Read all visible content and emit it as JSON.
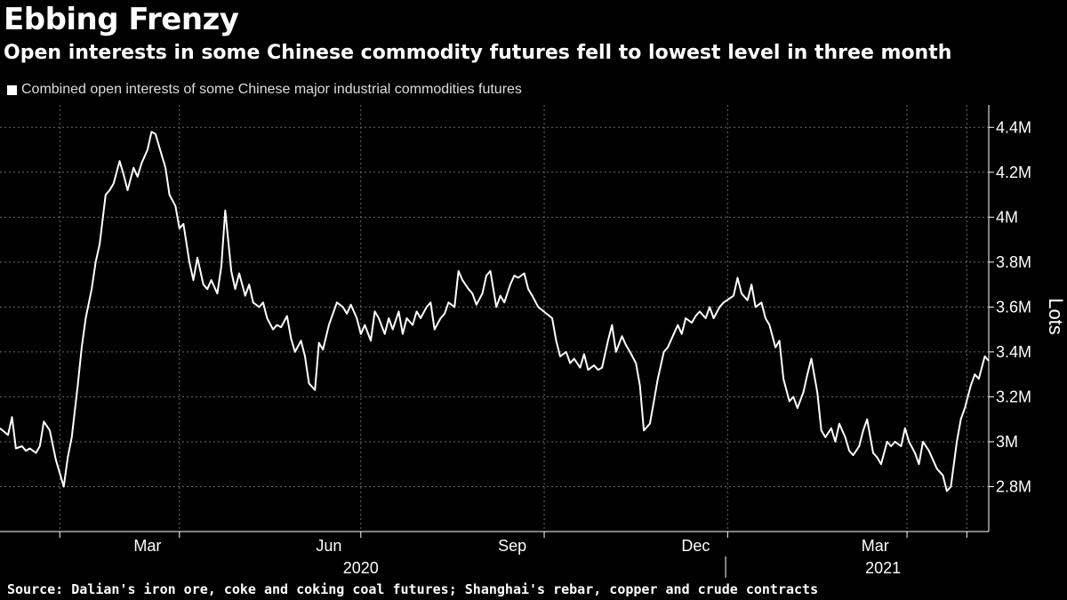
{
  "header": {
    "title": "Ebbing Frenzy",
    "subtitle": "Open interests in some Chinese commodity futures fell to lowest level in three month"
  },
  "footer": {
    "source": "Source: Dalian's iron ore, coke and coking coal futures; Shanghai's rebar, copper and crude contracts"
  },
  "colors": {
    "background": "#000000",
    "line": "#ffffff",
    "grid": "#6b6b6b"
  },
  "chart_data": {
    "type": "line",
    "title": "Ebbing Frenzy",
    "subtitle": "Open interests in some Chinese commodity futures fell to lowest level in three month",
    "ylabel": "Lots",
    "ylim": [
      2.6,
      4.5
    ],
    "y_unit": "M",
    "y_ticks": [
      {
        "value": 2.8,
        "label": "2.8M"
      },
      {
        "value": 3.0,
        "label": "3M"
      },
      {
        "value": 3.2,
        "label": "3.2M"
      },
      {
        "value": 3.4,
        "label": "3.4M"
      },
      {
        "value": 3.6,
        "label": "3.6M"
      },
      {
        "value": 3.8,
        "label": "3.8M"
      },
      {
        "value": 4.0,
        "label": "4M"
      },
      {
        "value": 4.2,
        "label": "4.2M"
      },
      {
        "value": 4.4,
        "label": "4.4M"
      }
    ],
    "xlim": [
      "2020-01-02",
      "2021-05-12"
    ],
    "x_gridlines": [
      "2020-02-01",
      "2020-04-01",
      "2020-07-01",
      "2020-10-01",
      "2021-01-01",
      "2021-04-01",
      "2021-05-01"
    ],
    "x_ticks": [
      {
        "label": "Mar",
        "date": "2020-03-16"
      },
      {
        "label": "Jun",
        "date": "2020-06-15"
      },
      {
        "label": "Sep",
        "date": "2020-09-15"
      },
      {
        "label": "Dec",
        "date": "2020-12-16"
      },
      {
        "label": "Mar",
        "date": "2021-03-16"
      }
    ],
    "years": [
      {
        "label": "2020",
        "date": "2020-07-01"
      },
      {
        "label": "2021",
        "date": "2021-03-20"
      }
    ],
    "year_divider": "2020-12-31",
    "grid": true,
    "legend": "top-left",
    "series": [
      {
        "name": "Combined open interests of some Chinese major industrial commodities futures",
        "points": [
          [
            "2020-01-02",
            3.06
          ],
          [
            "2020-01-06",
            3.03
          ],
          [
            "2020-01-08",
            3.11
          ],
          [
            "2020-01-10",
            2.97
          ],
          [
            "2020-01-13",
            2.98
          ],
          [
            "2020-01-15",
            2.96
          ],
          [
            "2020-01-17",
            2.97
          ],
          [
            "2020-01-20",
            2.95
          ],
          [
            "2020-01-22",
            2.98
          ],
          [
            "2020-01-24",
            3.09
          ],
          [
            "2020-01-27",
            3.05
          ],
          [
            "2020-01-30",
            2.92
          ],
          [
            "2020-02-03",
            2.8
          ],
          [
            "2020-02-05",
            2.93
          ],
          [
            "2020-02-07",
            3.02
          ],
          [
            "2020-02-10",
            3.25
          ],
          [
            "2020-02-12",
            3.42
          ],
          [
            "2020-02-14",
            3.55
          ],
          [
            "2020-02-17",
            3.68
          ],
          [
            "2020-02-19",
            3.8
          ],
          [
            "2020-02-21",
            3.88
          ],
          [
            "2020-02-24",
            4.1
          ],
          [
            "2020-02-26",
            4.12
          ],
          [
            "2020-02-28",
            4.15
          ],
          [
            "2020-03-02",
            4.25
          ],
          [
            "2020-03-04",
            4.19
          ],
          [
            "2020-03-06",
            4.12
          ],
          [
            "2020-03-09",
            4.22
          ],
          [
            "2020-03-11",
            4.18
          ],
          [
            "2020-03-13",
            4.24
          ],
          [
            "2020-03-16",
            4.3
          ],
          [
            "2020-03-18",
            4.38
          ],
          [
            "2020-03-20",
            4.37
          ],
          [
            "2020-03-23",
            4.28
          ],
          [
            "2020-03-25",
            4.22
          ],
          [
            "2020-03-27",
            4.1
          ],
          [
            "2020-03-30",
            4.05
          ],
          [
            "2020-04-01",
            3.95
          ],
          [
            "2020-04-03",
            3.97
          ],
          [
            "2020-04-06",
            3.8
          ],
          [
            "2020-04-08",
            3.72
          ],
          [
            "2020-04-10",
            3.82
          ],
          [
            "2020-04-13",
            3.7
          ],
          [
            "2020-04-15",
            3.68
          ],
          [
            "2020-04-17",
            3.72
          ],
          [
            "2020-04-20",
            3.66
          ],
          [
            "2020-04-22",
            3.78
          ],
          [
            "2020-04-24",
            4.03
          ],
          [
            "2020-04-27",
            3.76
          ],
          [
            "2020-04-29",
            3.68
          ],
          [
            "2020-05-01",
            3.75
          ],
          [
            "2020-05-04",
            3.65
          ],
          [
            "2020-05-06",
            3.7
          ],
          [
            "2020-05-08",
            3.62
          ],
          [
            "2020-05-11",
            3.6
          ],
          [
            "2020-05-13",
            3.62
          ],
          [
            "2020-05-15",
            3.55
          ],
          [
            "2020-05-18",
            3.5
          ],
          [
            "2020-05-20",
            3.52
          ],
          [
            "2020-05-22",
            3.51
          ],
          [
            "2020-05-25",
            3.56
          ],
          [
            "2020-05-27",
            3.46
          ],
          [
            "2020-05-29",
            3.4
          ],
          [
            "2020-06-01",
            3.45
          ],
          [
            "2020-06-03",
            3.38
          ],
          [
            "2020-06-05",
            3.26
          ],
          [
            "2020-06-08",
            3.23
          ],
          [
            "2020-06-10",
            3.44
          ],
          [
            "2020-06-12",
            3.41
          ],
          [
            "2020-06-15",
            3.52
          ],
          [
            "2020-06-17",
            3.57
          ],
          [
            "2020-06-19",
            3.62
          ],
          [
            "2020-06-22",
            3.6
          ],
          [
            "2020-06-24",
            3.57
          ],
          [
            "2020-06-26",
            3.61
          ],
          [
            "2020-06-29",
            3.55
          ],
          [
            "2020-07-01",
            3.48
          ],
          [
            "2020-07-03",
            3.52
          ],
          [
            "2020-07-06",
            3.45
          ],
          [
            "2020-07-08",
            3.58
          ],
          [
            "2020-07-10",
            3.55
          ],
          [
            "2020-07-13",
            3.48
          ],
          [
            "2020-07-15",
            3.55
          ],
          [
            "2020-07-17",
            3.5
          ],
          [
            "2020-07-20",
            3.58
          ],
          [
            "2020-07-22",
            3.48
          ],
          [
            "2020-07-24",
            3.55
          ],
          [
            "2020-07-27",
            3.52
          ],
          [
            "2020-07-29",
            3.58
          ],
          [
            "2020-07-31",
            3.55
          ],
          [
            "2020-08-03",
            3.6
          ],
          [
            "2020-08-05",
            3.62
          ],
          [
            "2020-08-07",
            3.5
          ],
          [
            "2020-08-10",
            3.55
          ],
          [
            "2020-08-12",
            3.57
          ],
          [
            "2020-08-14",
            3.62
          ],
          [
            "2020-08-17",
            3.6
          ],
          [
            "2020-08-19",
            3.76
          ],
          [
            "2020-08-21",
            3.72
          ],
          [
            "2020-08-24",
            3.68
          ],
          [
            "2020-08-26",
            3.66
          ],
          [
            "2020-08-28",
            3.61
          ],
          [
            "2020-08-31",
            3.66
          ],
          [
            "2020-09-02",
            3.74
          ],
          [
            "2020-09-04",
            3.76
          ],
          [
            "2020-09-07",
            3.6
          ],
          [
            "2020-09-09",
            3.65
          ],
          [
            "2020-09-11",
            3.62
          ],
          [
            "2020-09-14",
            3.7
          ],
          [
            "2020-09-16",
            3.74
          ],
          [
            "2020-09-18",
            3.73
          ],
          [
            "2020-09-21",
            3.75
          ],
          [
            "2020-09-23",
            3.68
          ],
          [
            "2020-09-25",
            3.65
          ],
          [
            "2020-09-28",
            3.6
          ],
          [
            "2020-10-05",
            3.55
          ],
          [
            "2020-10-07",
            3.45
          ],
          [
            "2020-10-09",
            3.38
          ],
          [
            "2020-10-12",
            3.4
          ],
          [
            "2020-10-14",
            3.35
          ],
          [
            "2020-10-16",
            3.37
          ],
          [
            "2020-10-19",
            3.33
          ],
          [
            "2020-10-21",
            3.39
          ],
          [
            "2020-10-23",
            3.32
          ],
          [
            "2020-10-26",
            3.34
          ],
          [
            "2020-10-28",
            3.32
          ],
          [
            "2020-10-30",
            3.33
          ],
          [
            "2020-11-02",
            3.45
          ],
          [
            "2020-11-04",
            3.52
          ],
          [
            "2020-11-06",
            3.4
          ],
          [
            "2020-11-09",
            3.47
          ],
          [
            "2020-11-11",
            3.43
          ],
          [
            "2020-11-13",
            3.4
          ],
          [
            "2020-11-16",
            3.35
          ],
          [
            "2020-11-18",
            3.25
          ],
          [
            "2020-11-20",
            3.05
          ],
          [
            "2020-11-23",
            3.08
          ],
          [
            "2020-11-25",
            3.18
          ],
          [
            "2020-11-27",
            3.28
          ],
          [
            "2020-11-30",
            3.4
          ],
          [
            "2020-12-02",
            3.42
          ],
          [
            "2020-12-04",
            3.46
          ],
          [
            "2020-12-07",
            3.52
          ],
          [
            "2020-12-09",
            3.48
          ],
          [
            "2020-12-11",
            3.55
          ],
          [
            "2020-12-14",
            3.53
          ],
          [
            "2020-12-16",
            3.56
          ],
          [
            "2020-12-18",
            3.58
          ],
          [
            "2020-12-21",
            3.55
          ],
          [
            "2020-12-23",
            3.6
          ],
          [
            "2020-12-25",
            3.55
          ],
          [
            "2020-12-28",
            3.6
          ],
          [
            "2020-12-30",
            3.62
          ],
          [
            "2021-01-04",
            3.65
          ],
          [
            "2021-01-06",
            3.73
          ],
          [
            "2021-01-08",
            3.66
          ],
          [
            "2021-01-11",
            3.63
          ],
          [
            "2021-01-13",
            3.7
          ],
          [
            "2021-01-15",
            3.6
          ],
          [
            "2021-01-18",
            3.62
          ],
          [
            "2021-01-20",
            3.55
          ],
          [
            "2021-01-22",
            3.52
          ],
          [
            "2021-01-25",
            3.42
          ],
          [
            "2021-01-27",
            3.45
          ],
          [
            "2021-01-29",
            3.28
          ],
          [
            "2021-02-01",
            3.18
          ],
          [
            "2021-02-03",
            3.2
          ],
          [
            "2021-02-05",
            3.15
          ],
          [
            "2021-02-08",
            3.22
          ],
          [
            "2021-02-10",
            3.3
          ],
          [
            "2021-02-12",
            3.37
          ],
          [
            "2021-02-15",
            3.22
          ],
          [
            "2021-02-17",
            3.05
          ],
          [
            "2021-02-19",
            3.02
          ],
          [
            "2021-02-22",
            3.06
          ],
          [
            "2021-02-24",
            3.0
          ],
          [
            "2021-02-26",
            3.08
          ],
          [
            "2021-03-01",
            3.02
          ],
          [
            "2021-03-03",
            2.96
          ],
          [
            "2021-03-05",
            2.94
          ],
          [
            "2021-03-08",
            2.98
          ],
          [
            "2021-03-10",
            3.05
          ],
          [
            "2021-03-12",
            3.1
          ],
          [
            "2021-03-15",
            2.95
          ],
          [
            "2021-03-17",
            2.93
          ],
          [
            "2021-03-19",
            2.9
          ],
          [
            "2021-03-22",
            3.0
          ],
          [
            "2021-03-24",
            2.98
          ],
          [
            "2021-03-26",
            3.0
          ],
          [
            "2021-03-29",
            2.98
          ],
          [
            "2021-03-31",
            3.06
          ],
          [
            "2021-04-02",
            3.0
          ],
          [
            "2021-04-05",
            2.95
          ],
          [
            "2021-04-07",
            2.9
          ],
          [
            "2021-04-09",
            3.0
          ],
          [
            "2021-04-12",
            2.96
          ],
          [
            "2021-04-14",
            2.92
          ],
          [
            "2021-04-16",
            2.88
          ],
          [
            "2021-04-19",
            2.85
          ],
          [
            "2021-04-21",
            2.78
          ],
          [
            "2021-04-23",
            2.8
          ],
          [
            "2021-04-26",
            3.0
          ],
          [
            "2021-04-28",
            3.1
          ],
          [
            "2021-04-30",
            3.15
          ],
          [
            "2021-05-03",
            3.25
          ],
          [
            "2021-05-05",
            3.3
          ],
          [
            "2021-05-07",
            3.28
          ],
          [
            "2021-05-10",
            3.38
          ],
          [
            "2021-05-12",
            3.36
          ]
        ]
      }
    ]
  }
}
